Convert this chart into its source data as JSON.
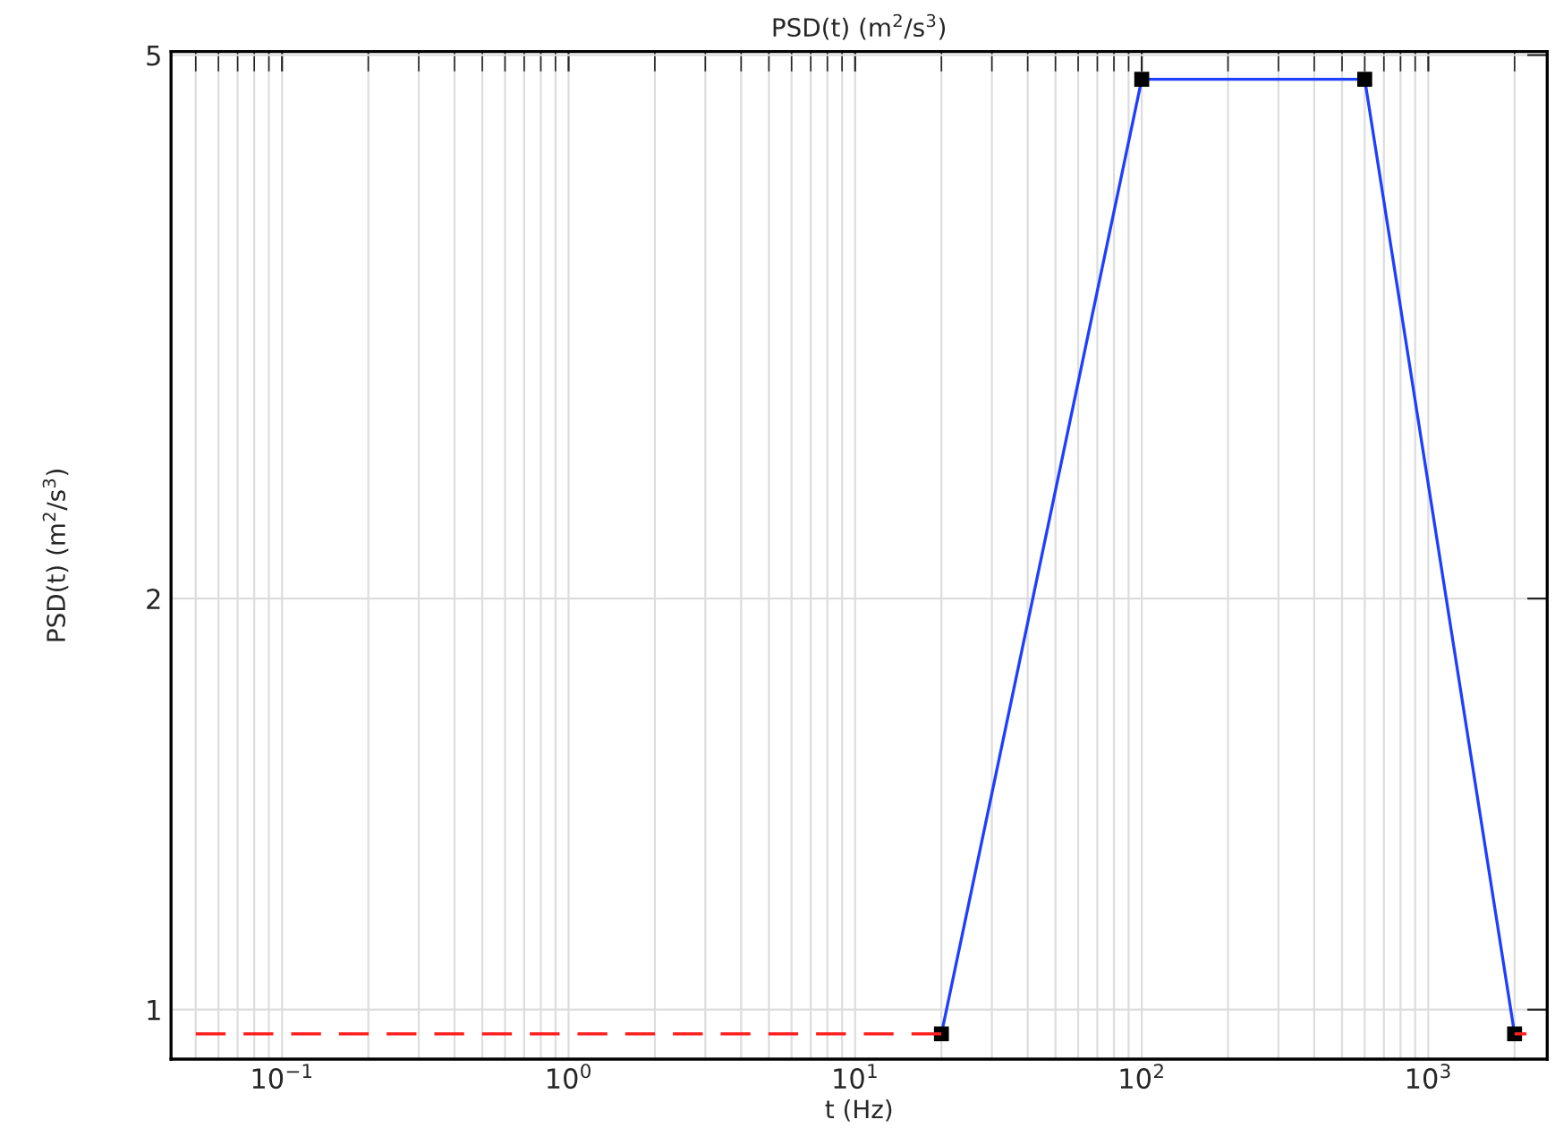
{
  "chart_data": {
    "type": "line",
    "title": "PSD(t) (m$^{2}$/s$^{3}$)",
    "xlabel": "t (Hz)",
    "ylabel": "PSD(t) (m$^{2}$/s$^{3}$)",
    "log": "xy",
    "grid": true,
    "xlim": [
      0.041,
      2600
    ],
    "ylim": [
      0.92,
      5.03
    ],
    "xticks": [
      {
        "value": 0.1,
        "label": "10$^{−1}$"
      },
      {
        "value": 1,
        "label": "10$^{0}$"
      },
      {
        "value": 10,
        "label": "10$^{1}$"
      },
      {
        "value": 100,
        "label": "10$^{2}$"
      },
      {
        "value": 1000,
        "label": "10$^{3}$"
      }
    ],
    "yticks": [
      1,
      2,
      5
    ],
    "series": [
      {
        "color": "#1f3fff",
        "x": [
          20,
          100,
          600,
          2000
        ],
        "values": [
          0.96,
          4.8,
          4.8,
          0.96
        ],
        "marker": "square",
        "line_style": "solid"
      },
      {
        "color": "#ff2020",
        "x": [
          0.05,
          20,
          100,
          2000,
          2200
        ],
        "values": [
          0.96,
          0.96,
          null,
          0.96,
          0.96
        ],
        "marker": "none",
        "line_style": "dashed"
      }
    ]
  }
}
